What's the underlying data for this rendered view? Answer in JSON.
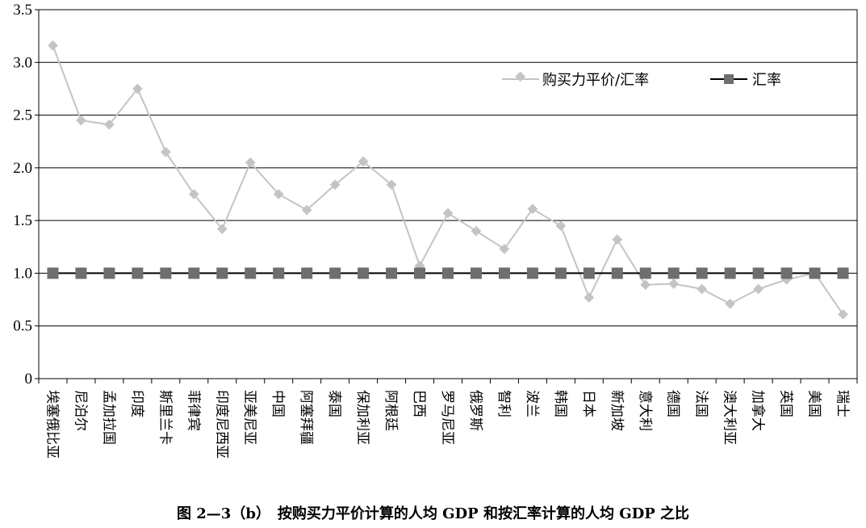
{
  "caption": "图 2—3（b）　按购买力平价计算的人均 GDP 和按汇率计算的人均 GDP 之比",
  "colors": {
    "ppp_series": "#c4c4c4",
    "fx_series": "#6e6e6e",
    "fx_line": "#000000",
    "grid": "#000000"
  },
  "chart_data": {
    "type": "line",
    "categories": [
      "埃塞俄比亚",
      "尼泊尔",
      "孟加拉国",
      "印度",
      "斯里兰卡",
      "菲律宾",
      "印度尼西亚",
      "亚美尼亚",
      "中国",
      "阿塞拜疆",
      "泰国",
      "保加利亚",
      "阿根廷",
      "巴西",
      "罗马尼亚",
      "俄罗斯",
      "智利",
      "波兰",
      "韩国",
      "日本",
      "新加坡",
      "意大利",
      "德国",
      "法国",
      "澳大利亚",
      "加拿大",
      "英国",
      "美国",
      "瑞士"
    ],
    "series": [
      {
        "name": "购买力平价/汇率",
        "marker": "diamond",
        "values": [
          3.16,
          2.45,
          2.41,
          2.75,
          2.15,
          1.75,
          1.42,
          2.05,
          1.75,
          1.6,
          1.84,
          2.06,
          1.84,
          1.07,
          1.57,
          1.4,
          1.23,
          1.61,
          1.45,
          0.77,
          1.32,
          0.89,
          0.9,
          0.85,
          0.71,
          0.85,
          0.94,
          1.0,
          0.61
        ]
      },
      {
        "name": "汇率",
        "marker": "square",
        "values": [
          1,
          1,
          1,
          1,
          1,
          1,
          1,
          1,
          1,
          1,
          1,
          1,
          1,
          1,
          1,
          1,
          1,
          1,
          1,
          1,
          1,
          1,
          1,
          1,
          1,
          1,
          1,
          1,
          1
        ]
      }
    ],
    "ylim": [
      0,
      3.5
    ],
    "yticks": [
      "0",
      "0.5",
      "1.0",
      "1.5",
      "2.0",
      "2.5",
      "3.0",
      "3.5"
    ],
    "grid": "horizontal",
    "legend_position": "top-right"
  }
}
